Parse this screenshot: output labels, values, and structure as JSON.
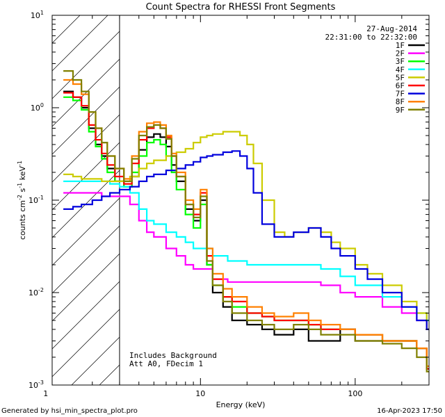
{
  "footer": {
    "left": "Generated by hsi_min_spectra_plot.pro",
    "right": "16-Apr-2023 17:50"
  },
  "chart_data": {
    "type": "line",
    "title": "Count Spectra for RHESSI Front Segments",
    "xlabel": "Energy (keV)",
    "ylabel_parts": [
      "counts cm",
      "-2",
      " s",
      "-1",
      " keV",
      "-1"
    ],
    "xscale": "log",
    "yscale": "log",
    "xlim": [
      1.1,
      300
    ],
    "ylim": [
      0.001,
      10
    ],
    "x_ticks": [
      {
        "v": 1,
        "label": "1"
      },
      {
        "v": 10,
        "label": "10"
      },
      {
        "v": 100,
        "label": "100"
      }
    ],
    "y_ticks": [
      {
        "v": 0.001,
        "base": "10",
        "exp": "-3"
      },
      {
        "v": 0.01,
        "base": "10",
        "exp": "-2"
      },
      {
        "v": 0.1,
        "base": "10",
        "exp": "-1"
      },
      {
        "v": 1,
        "base": "10",
        "exp": "0"
      },
      {
        "v": 10,
        "base": "10",
        "exp": "1"
      }
    ],
    "date": "27-Aug-2014",
    "time_range": "22:31:00 to 22:32:00",
    "notes": [
      "Includes Background",
      "Att A0, FDecim 1"
    ],
    "threshold_keV": 3,
    "series": [
      {
        "name": "1F",
        "color": "#000000",
        "x": [
          1.3,
          1.5,
          1.7,
          1.9,
          2.1,
          2.3,
          2.5,
          2.8,
          3.2,
          3.6,
          4,
          4.5,
          5,
          5.5,
          6,
          6.5,
          7,
          8,
          9,
          10,
          11,
          12,
          14,
          16,
          20,
          25,
          30,
          40,
          50,
          60,
          80,
          100,
          150,
          200,
          250,
          290
        ],
        "y": [
          1.5,
          1.3,
          1.0,
          0.6,
          0.4,
          0.3,
          0.22,
          0.16,
          0.14,
          0.18,
          0.35,
          0.48,
          0.52,
          0.48,
          0.38,
          0.24,
          0.16,
          0.08,
          0.06,
          0.1,
          0.02,
          0.01,
          0.007,
          0.005,
          0.0045,
          0.004,
          0.0035,
          0.004,
          0.003,
          0.003,
          0.004,
          0.003,
          0.003,
          0.003,
          0.0025,
          0.0015
        ]
      },
      {
        "name": "2F",
        "color": "#ff00ff",
        "x": [
          1.3,
          1.5,
          1.7,
          2,
          2.3,
          2.6,
          3,
          3.5,
          4,
          4.5,
          5,
          6,
          7,
          8,
          9,
          10,
          12,
          15,
          20,
          25,
          30,
          40,
          50,
          60,
          80,
          100,
          150,
          200,
          250,
          290
        ],
        "y": [
          0.12,
          0.12,
          0.12,
          0.12,
          0.11,
          0.11,
          0.11,
          0.09,
          0.06,
          0.045,
          0.04,
          0.03,
          0.025,
          0.02,
          0.018,
          0.018,
          0.014,
          0.013,
          0.013,
          0.013,
          0.013,
          0.013,
          0.013,
          0.012,
          0.01,
          0.009,
          0.007,
          0.006,
          0.005,
          0.004
        ]
      },
      {
        "name": "3F",
        "color": "#00ff00",
        "x": [
          1.3,
          1.5,
          1.7,
          1.9,
          2.1,
          2.3,
          2.5,
          2.8,
          3.2,
          3.6,
          4,
          4.5,
          5,
          5.5,
          6,
          6.5,
          7,
          8,
          9,
          10,
          11,
          12,
          14,
          16,
          20,
          25,
          30,
          40,
          50,
          60,
          80,
          100,
          150,
          200,
          250,
          290
        ],
        "y": [
          1.3,
          1.2,
          0.95,
          0.55,
          0.38,
          0.28,
          0.2,
          0.16,
          0.14,
          0.2,
          0.3,
          0.42,
          0.45,
          0.4,
          0.3,
          0.2,
          0.13,
          0.07,
          0.05,
          0.09,
          0.02,
          0.012,
          0.009,
          0.007,
          0.006,
          0.0055,
          0.005,
          0.005,
          0.0045,
          0.004,
          0.004,
          0.0035,
          0.003,
          0.003,
          0.0025,
          0.0015
        ]
      },
      {
        "name": "4F",
        "color": "#00ffff",
        "x": [
          1.3,
          1.5,
          1.7,
          2,
          2.3,
          2.6,
          3,
          3.5,
          4,
          4.5,
          5,
          6,
          7,
          8,
          9,
          10,
          12,
          15,
          20,
          25,
          30,
          40,
          50,
          60,
          80,
          100,
          150,
          200,
          250,
          290
        ],
        "y": [
          0.16,
          0.16,
          0.16,
          0.16,
          0.16,
          0.15,
          0.14,
          0.12,
          0.08,
          0.06,
          0.055,
          0.045,
          0.04,
          0.035,
          0.03,
          0.03,
          0.025,
          0.022,
          0.02,
          0.02,
          0.02,
          0.02,
          0.02,
          0.018,
          0.015,
          0.012,
          0.009,
          0.007,
          0.006,
          0.005
        ]
      },
      {
        "name": "5F",
        "color": "#cccc00",
        "x": [
          1.3,
          1.5,
          1.7,
          2,
          2.3,
          2.6,
          3,
          3.5,
          4,
          4.5,
          5,
          6,
          7,
          8,
          9,
          10,
          11,
          12,
          14,
          16,
          18,
          20,
          22,
          25,
          30,
          35,
          40,
          50,
          60,
          70,
          80,
          100,
          120,
          150,
          200,
          250,
          290
        ],
        "y": [
          0.19,
          0.18,
          0.17,
          0.17,
          0.16,
          0.16,
          0.16,
          0.18,
          0.22,
          0.25,
          0.27,
          0.3,
          0.33,
          0.36,
          0.42,
          0.48,
          0.5,
          0.52,
          0.55,
          0.55,
          0.5,
          0.4,
          0.25,
          0.1,
          0.045,
          0.04,
          0.045,
          0.05,
          0.045,
          0.035,
          0.03,
          0.02,
          0.016,
          0.012,
          0.008,
          0.006,
          0.004
        ]
      },
      {
        "name": "6F",
        "color": "#ff0000",
        "x": [
          1.3,
          1.5,
          1.7,
          1.9,
          2.1,
          2.3,
          2.5,
          2.8,
          3.2,
          3.6,
          4,
          4.5,
          5,
          5.5,
          6,
          6.5,
          7,
          8,
          9,
          10,
          11,
          12,
          14,
          16,
          20,
          25,
          30,
          40,
          50,
          60,
          80,
          100,
          150,
          200,
          250,
          290
        ],
        "y": [
          1.45,
          1.3,
          1.05,
          0.65,
          0.45,
          0.32,
          0.24,
          0.18,
          0.15,
          0.25,
          0.45,
          0.6,
          0.65,
          0.6,
          0.48,
          0.3,
          0.18,
          0.09,
          0.07,
          0.12,
          0.025,
          0.014,
          0.009,
          0.008,
          0.006,
          0.0055,
          0.005,
          0.005,
          0.0045,
          0.004,
          0.004,
          0.0035,
          0.003,
          0.003,
          0.0025,
          0.0015
        ]
      },
      {
        "name": "7F",
        "color": "#0000dd",
        "x": [
          1.3,
          1.5,
          1.7,
          2,
          2.3,
          2.6,
          3,
          3.5,
          4,
          4.5,
          5,
          6,
          7,
          8,
          9,
          10,
          11,
          12,
          14,
          16,
          18,
          20,
          22,
          25,
          30,
          35,
          40,
          50,
          60,
          70,
          80,
          100,
          120,
          150,
          200,
          250,
          290
        ],
        "y": [
          0.08,
          0.085,
          0.09,
          0.1,
          0.11,
          0.12,
          0.13,
          0.14,
          0.16,
          0.18,
          0.19,
          0.21,
          0.22,
          0.24,
          0.26,
          0.29,
          0.3,
          0.31,
          0.33,
          0.34,
          0.3,
          0.22,
          0.12,
          0.055,
          0.04,
          0.04,
          0.045,
          0.05,
          0.04,
          0.03,
          0.025,
          0.018,
          0.014,
          0.01,
          0.007,
          0.005,
          0.004
        ]
      },
      {
        "name": "8F",
        "color": "#ff8000",
        "x": [
          1.3,
          1.5,
          1.7,
          1.9,
          2.1,
          2.3,
          2.5,
          2.8,
          3.2,
          3.6,
          4,
          4.5,
          5,
          5.5,
          6,
          6.5,
          7,
          8,
          9,
          10,
          11,
          12,
          14,
          16,
          20,
          25,
          30,
          40,
          50,
          60,
          80,
          100,
          150,
          200,
          250,
          290
        ],
        "y": [
          2.0,
          1.8,
          1.4,
          0.9,
          0.6,
          0.42,
          0.3,
          0.22,
          0.17,
          0.3,
          0.55,
          0.68,
          0.7,
          0.65,
          0.5,
          0.32,
          0.2,
          0.1,
          0.08,
          0.13,
          0.03,
          0.016,
          0.011,
          0.009,
          0.007,
          0.006,
          0.0055,
          0.006,
          0.005,
          0.0045,
          0.004,
          0.0035,
          0.003,
          0.003,
          0.0025,
          0.0016
        ]
      },
      {
        "name": "9F",
        "color": "#808000",
        "x": [
          1.3,
          1.5,
          1.7,
          1.9,
          2.1,
          2.3,
          2.5,
          2.8,
          3.2,
          3.6,
          4,
          4.5,
          5,
          5.5,
          6,
          6.5,
          7,
          8,
          9,
          10,
          11,
          12,
          14,
          16,
          20,
          25,
          30,
          40,
          50,
          60,
          80,
          100,
          150,
          200,
          250,
          290
        ],
        "y": [
          2.5,
          2.0,
          1.5,
          0.9,
          0.6,
          0.42,
          0.3,
          0.22,
          0.16,
          0.28,
          0.5,
          0.62,
          0.65,
          0.6,
          0.46,
          0.3,
          0.18,
          0.09,
          0.065,
          0.11,
          0.022,
          0.012,
          0.008,
          0.006,
          0.005,
          0.0045,
          0.004,
          0.0045,
          0.004,
          0.0035,
          0.0035,
          0.003,
          0.0028,
          0.0025,
          0.002,
          0.0014
        ]
      }
    ]
  }
}
